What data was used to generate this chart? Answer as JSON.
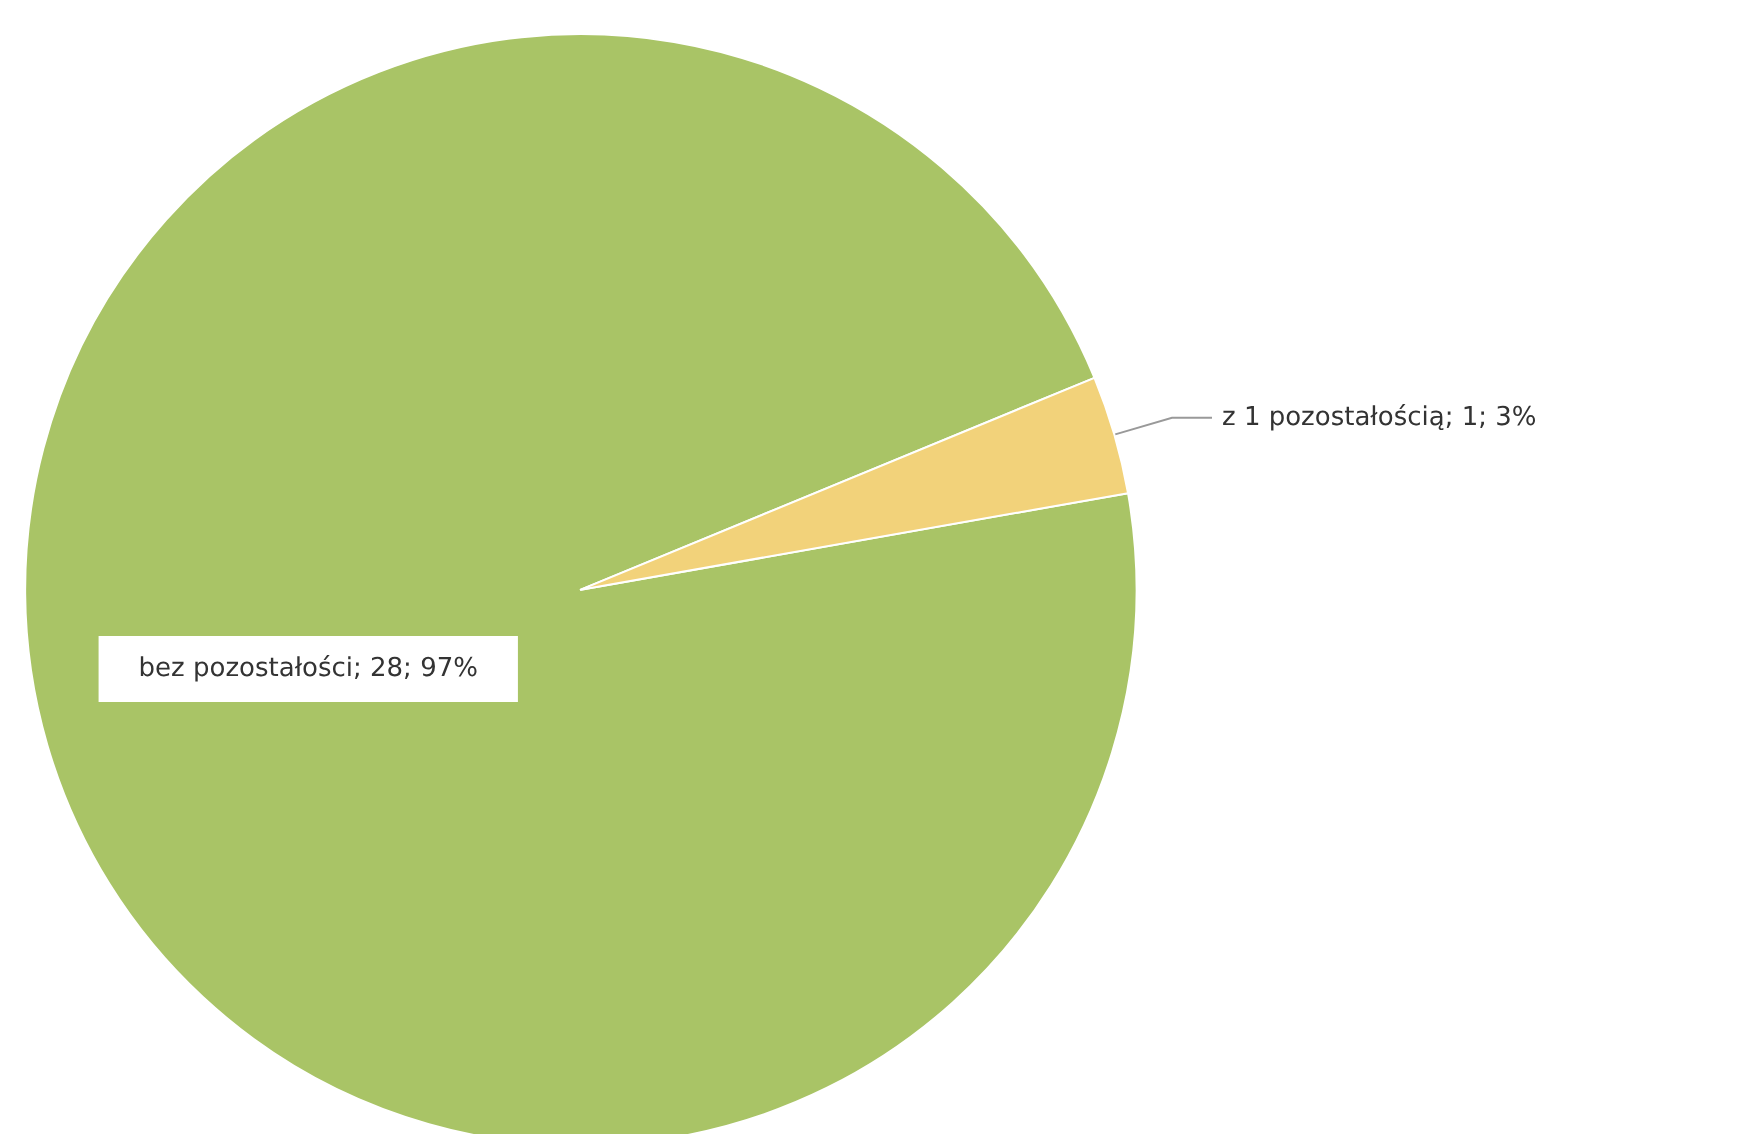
{
  "chart_data": {
    "type": "pie",
    "categories": [
      "bez pozostałości",
      "z 1 pozostałością"
    ],
    "values": [
      28,
      1
    ],
    "value_labels": [
      "28; 97%",
      "1; 3%"
    ],
    "colors": [
      "#a9c466",
      "#f2d27a"
    ],
    "legend": false
  }
}
